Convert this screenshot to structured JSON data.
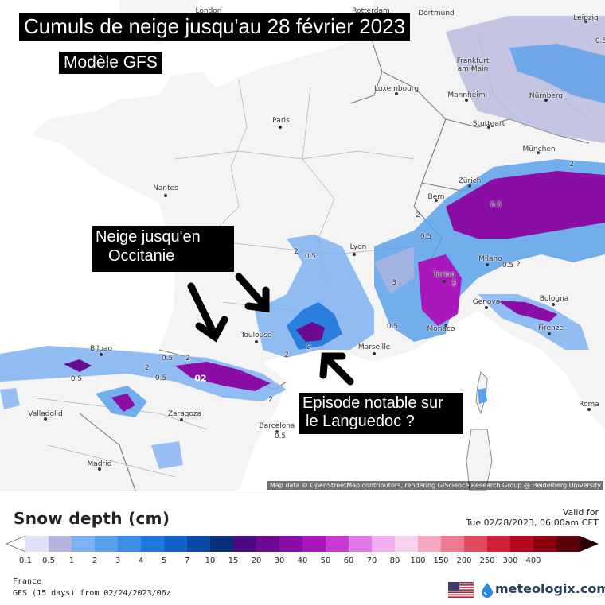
{
  "map": {
    "title": "Cumuls de neige jusqu'au 28 février 2023",
    "subtitle": "Modèle GFS",
    "annotation_occitanie_line1": "Neige jusqu'en",
    "annotation_occitanie_line2": "Occitanie",
    "annotation_languedoc_line1": "Episode notable sur",
    "annotation_languedoc_line2": "le Languedoc ?",
    "attribution": "Map data © OpenStreetMap contributors, rendering GIScience Research Group @ Heidelberg University",
    "cities": [
      "London",
      "Rotterdam",
      "Dortmund",
      "Leipzig",
      "Frankfurt am Main",
      "Luxembourg",
      "Mannheim",
      "Nürnberg",
      "Paris",
      "Stuttgart",
      "München",
      "Nantes",
      "Zürich",
      "Bern",
      "Lyon",
      "Milano",
      "Torino",
      "Genova",
      "Bologna",
      "Firenze",
      "Monaco",
      "Marseille",
      "Toulouse",
      "Bilbao",
      "Valladolid",
      "Zaragoza",
      "Barcelona",
      "Madrid",
      "Roma"
    ],
    "value_labels": [
      "0.5",
      "2",
      "2",
      "0.5",
      "3",
      "2",
      "0.5",
      "0.5",
      "2",
      "0.5",
      "2",
      "0.5",
      "3",
      "0.5",
      "2",
      "0.5",
      "02",
      "0.5",
      "0.5",
      "2",
      "2",
      "2"
    ],
    "colors": {
      "land": "#f4f4f4",
      "sea": "#ffffff",
      "border": "#8a8a8a",
      "annotation_bg": "#000000",
      "annotation_text": "#ffffff"
    }
  },
  "legend": {
    "title": "Snow depth (cm)",
    "valid_label": "Valid for",
    "valid_value": "Tue 02/28/2023, 06:00am CET",
    "region": "France",
    "model_run": "GFS (15 days) from  02/24/2023/06z",
    "brand": "meteologix.com",
    "ticks": [
      "0.1",
      "0.5",
      "1",
      "2",
      "3",
      "4",
      "5",
      "7",
      "10",
      "15",
      "20",
      "30",
      "40",
      "50",
      "60",
      "70",
      "80",
      "100",
      "150",
      "200",
      "250",
      "300",
      "400"
    ],
    "colors": [
      "#e0e0f6",
      "#b4b4de",
      "#7fb2f0",
      "#5aa0ea",
      "#3c8ee4",
      "#1f78dc",
      "#0e62c8",
      "#0a4aa4",
      "#0a2f7a",
      "#4a0a80",
      "#6a0a90",
      "#8a0ea6",
      "#a818bc",
      "#c83ad2",
      "#e07ae6",
      "#f0b0f0",
      "#f8d0f0",
      "#f4a8c0",
      "#ee7c90",
      "#e24a5e",
      "#d0203a",
      "#b40a20",
      "#8a0010",
      "#5a0008"
    ]
  }
}
